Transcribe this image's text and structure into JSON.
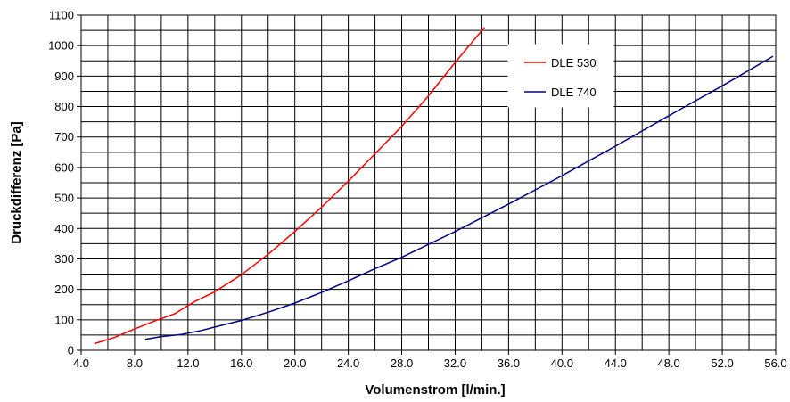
{
  "chart_data": {
    "type": "line",
    "xlabel": "Volumenstrom [l/min.]",
    "ylabel": "Druckdifferenz [Pa]",
    "xlim": [
      4.0,
      56.0
    ],
    "ylim": [
      0,
      1100
    ],
    "xticks": [
      "4.0",
      "8.0",
      "12.0",
      "16.0",
      "20.0",
      "24.0",
      "28.0",
      "32.0",
      "36.0",
      "40.0",
      "44.0",
      "48.0",
      "52.0",
      "56.0"
    ],
    "yticks": [
      "0",
      "100",
      "200",
      "300",
      "400",
      "500",
      "600",
      "700",
      "800",
      "900",
      "1000",
      "1100"
    ],
    "grid": true,
    "legend_position": "top-right",
    "series": [
      {
        "name": "DLE 530",
        "color": "#ff0000",
        "x": [
          5.0,
          6.5,
          8.0,
          9.5,
          11.0,
          12.5,
          14.0,
          16.0,
          18.0,
          20.0,
          22.0,
          24.0,
          26.0,
          28.0,
          30.0,
          32.0,
          34.2
        ],
        "y": [
          22,
          42,
          70,
          96,
          120,
          160,
          192,
          248,
          315,
          390,
          470,
          555,
          645,
          735,
          835,
          945,
          1060
        ]
      },
      {
        "name": "DLE 740",
        "color": "#000080",
        "x": [
          8.8,
          10.0,
          11.5,
          13.0,
          14.5,
          16.0,
          18.0,
          20.0,
          22.0,
          24.0,
          26.0,
          28.0,
          32.0,
          36.0,
          40.0,
          44.0,
          48.0,
          52.0,
          55.8
        ],
        "y": [
          36,
          45,
          52,
          65,
          82,
          98,
          125,
          155,
          190,
          228,
          268,
          305,
          390,
          480,
          573,
          670,
          770,
          868,
          965
        ]
      }
    ]
  }
}
